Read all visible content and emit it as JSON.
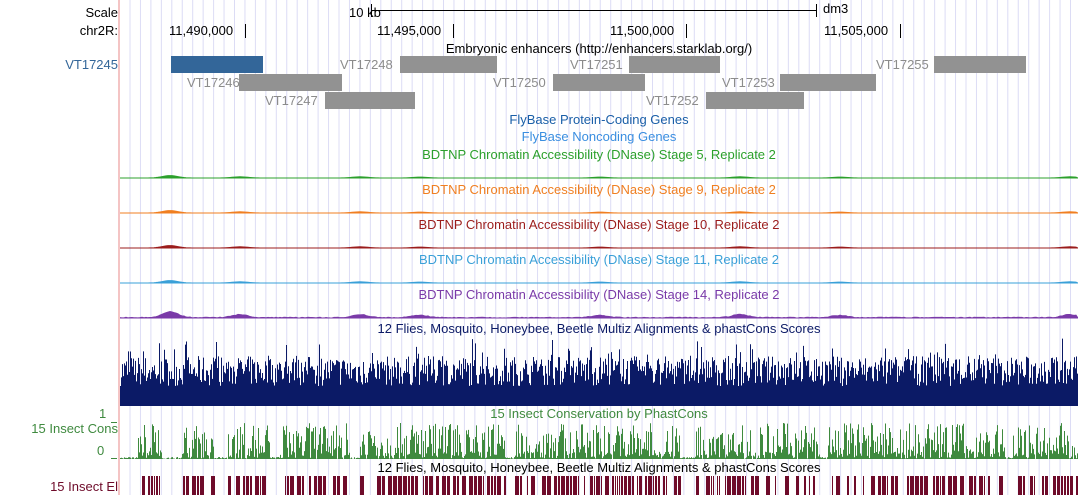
{
  "ruler": {
    "scale_label": "Scale",
    "scale_bar_label": "10 kb",
    "assembly": "dm3",
    "chrom_label": "chr2R:",
    "ticks": [
      "11,490,000",
      "11,495,000",
      "11,500,000",
      "11,505,000"
    ]
  },
  "enhancers": {
    "title": "Embryonic enhancers (http://enhancers.starklab.org/)",
    "items": [
      {
        "name": "VT17245",
        "highlighted": true
      },
      {
        "name": "VT17246"
      },
      {
        "name": "VT17247"
      },
      {
        "name": "VT17248"
      },
      {
        "name": "VT17250"
      },
      {
        "name": "VT17251"
      },
      {
        "name": "VT17252"
      },
      {
        "name": "VT17253"
      },
      {
        "name": "VT17255"
      }
    ]
  },
  "tracks": {
    "flybase_coding": "FlyBase Protein-Coding Genes",
    "flybase_noncoding": "FlyBase Noncoding Genes",
    "dnase": [
      {
        "title": "BDTNP Chromatin Accessibility (DNase) Stage 5, Replicate 2",
        "color": "#2ca02c"
      },
      {
        "title": "BDTNP Chromatin Accessibility (DNase) Stage 9, Replicate 2",
        "color": "#f07f21"
      },
      {
        "title": "BDTNP Chromatin Accessibility (DNase) Stage 10, Replicate 2",
        "color": "#9b1c1c"
      },
      {
        "title": "BDTNP Chromatin Accessibility (DNase) Stage 11, Replicate 2",
        "color": "#3aa0d8"
      },
      {
        "title": "BDTNP Chromatin Accessibility (DNase) Stage 14, Replicate 2",
        "color": "#7a3aa8"
      }
    ],
    "multiz_title": "12 Flies, Mosquito, Honeybee, Beetle Multiz Alignments & phastCons Scores",
    "phastcons_title": "15 Insect Conservation by PhastCons",
    "phastcons_label": "15 Insect Cons",
    "phastcons_axis_max": "1",
    "phastcons_axis_min": "0",
    "elements_title": "12 Flies, Mosquito, Honeybee, Beetle Multiz Alignments & phastCons Scores",
    "elements_label": "15 Insect El"
  },
  "colors": {
    "highlight": "#336699",
    "enhancer": "#929292",
    "multiz": "#0b1a66",
    "phastcons": "#3f8a3f",
    "elements": "#6e0b2a",
    "grid": "#dcdcf5",
    "side_line": "#f4c4c4"
  }
}
